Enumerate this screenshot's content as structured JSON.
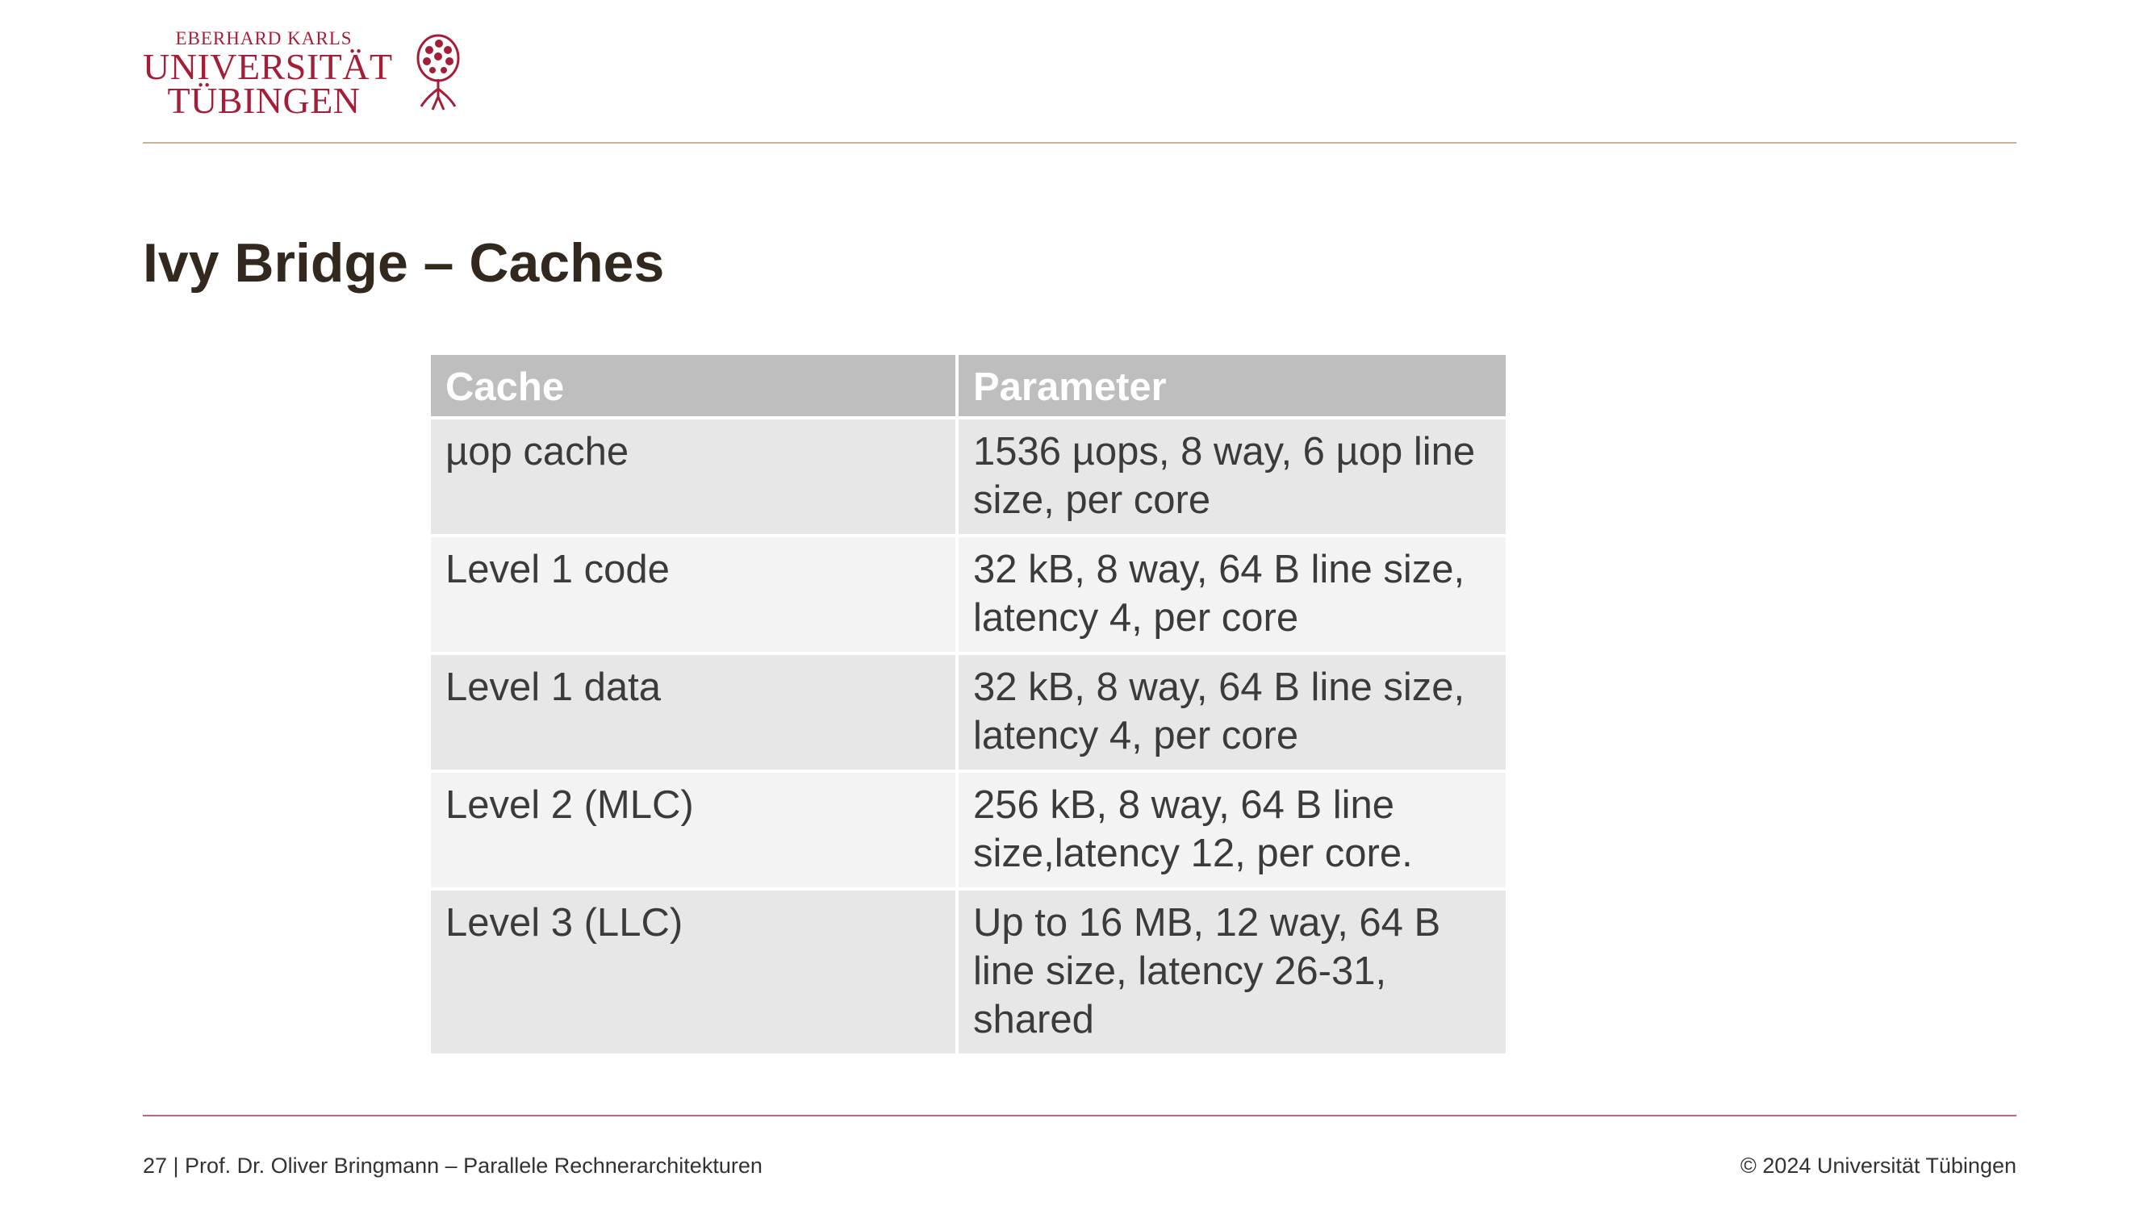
{
  "logo": {
    "line1": "EBERHARD KARLS",
    "line2": "UNIVERSITÄT",
    "line3": "TÜBINGEN",
    "icon": "tree-seal-icon",
    "color": "#a51e37"
  },
  "title": "Ivy Bridge – Caches",
  "table": {
    "headers": [
      "Cache",
      "Parameter"
    ],
    "rows": [
      [
        "µop cache",
        "1536 µops, 8 way, 6 µop line size, per core"
      ],
      [
        "Level 1 code",
        "32 kB, 8 way, 64 B line size, latency 4, per core"
      ],
      [
        "Level 1 data",
        "32 kB, 8 way, 64 B line size, latency 4, per core"
      ],
      [
        "Level 2 (MLC)",
        "256 kB, 8 way, 64 B line size,latency 12, per core."
      ],
      [
        "Level 3 (LLC)",
        "Up to 16 MB, 12 way, 64 B line size, latency 26-31, shared"
      ]
    ]
  },
  "footer": {
    "left": "27 | Prof. Dr. Oliver Bringmann – Parallele Rechnerarchitekturen",
    "right": "© 2024 Universität Tübingen"
  }
}
